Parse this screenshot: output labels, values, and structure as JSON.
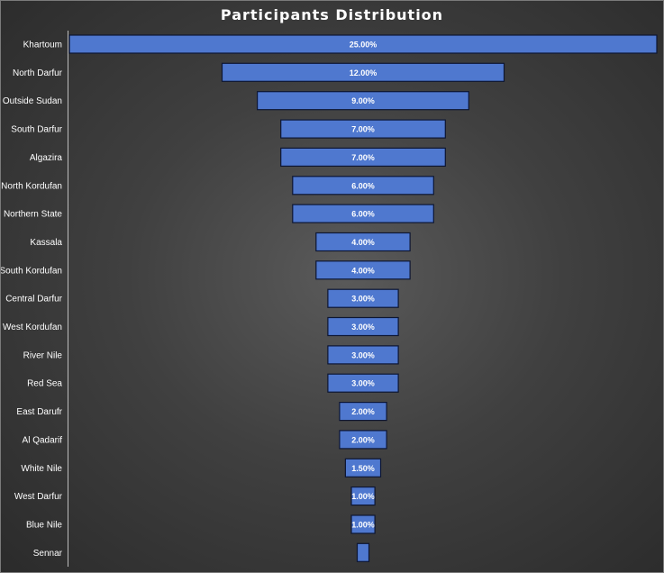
{
  "chart_data": {
    "type": "funnel",
    "title": "Participants Distribution",
    "categories": [
      "Khartoum",
      "North Darfur",
      "Outside Sudan",
      "South Darfur",
      "Algazira",
      "North Kordufan",
      "Northern State",
      "Kassala",
      "South Kordufan",
      "Central Darfur",
      "West Kordufan",
      "River Nile",
      "Red Sea",
      "East Darufr",
      "Al Qadarif",
      "White Nile",
      "West Darfur",
      "Blue Nile",
      "Sennar"
    ],
    "values": [
      25,
      12,
      9,
      7,
      7,
      6,
      6,
      4,
      4,
      3,
      3,
      3,
      3,
      2,
      2,
      1.5,
      1,
      1,
      0.5
    ],
    "data_labels": [
      "25.00%",
      "12.00%",
      "9.00%",
      "7.00%",
      "7.00%",
      "6.00%",
      "6.00%",
      "4.00%",
      "4.00%",
      "3.00%",
      "3.00%",
      "3.00%",
      "3.00%",
      "2.00%",
      "2.00%",
      "1.50%",
      "1.00%",
      "1.00%",
      ""
    ],
    "value_unit": "%",
    "xlabel": "",
    "ylabel": "",
    "legend": "none",
    "grid": false,
    "colors": {
      "bar_fill": "#4f78cf",
      "bar_stroke": "#0d1633",
      "text": "#ffffff",
      "background": "#3c3c3c"
    }
  }
}
